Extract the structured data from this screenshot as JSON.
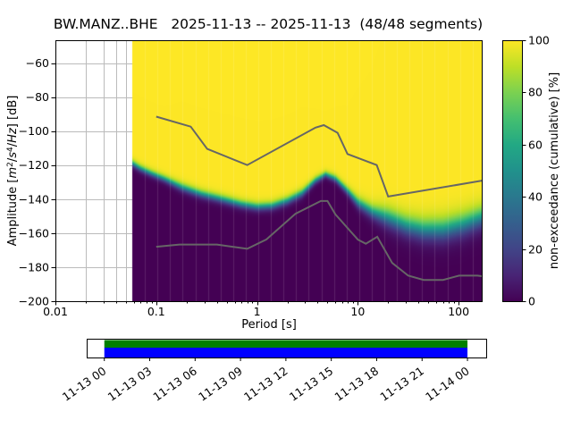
{
  "title": "BW.MANZ..BHE   2025-11-13 -- 2025-11-13  (48/48 segments)",
  "chart_data": {
    "type": "heatmap",
    "plot_kind": "seismic PPSD cumulative spectral histogram",
    "station_id": "BW.MANZ..BHE",
    "date_range": "2025-11-13 -- 2025-11-13",
    "segments": "48/48",
    "xlabel": "Period [s]",
    "ylabel": "Amplitude [m²/s⁴/Hz] [dB]",
    "ylabel_parts": [
      {
        "t": "Amplitude ["
      },
      {
        "t": "m",
        "style": "italic"
      },
      {
        "t": "2",
        "style": "sup"
      },
      {
        "t": "/"
      },
      {
        "t": "s",
        "style": "italic"
      },
      {
        "t": "4",
        "style": "sup"
      },
      {
        "t": "/"
      },
      {
        "t": "Hz",
        "style": "italic"
      },
      {
        "t": "] [dB]"
      }
    ],
    "colorbar_label": "non-exceedance (cumulative) [%]",
    "x_scale": "log",
    "xlim": [
      0.01,
      173
    ],
    "ylim": [
      -200,
      -46.6
    ],
    "x_ticks": [
      {
        "value": 0.01,
        "label": "0.01"
      },
      {
        "value": 0.1,
        "label": "0.1"
      },
      {
        "value": 1,
        "label": "1"
      },
      {
        "value": 10,
        "label": "10"
      },
      {
        "value": 100,
        "label": "100"
      }
    ],
    "y_ticks": [
      {
        "value": -60,
        "label": "−60"
      },
      {
        "value": -80,
        "label": "−80"
      },
      {
        "value": -100,
        "label": "−100"
      },
      {
        "value": -120,
        "label": "−120"
      },
      {
        "value": -140,
        "label": "−140"
      },
      {
        "value": -160,
        "label": "−160"
      },
      {
        "value": -180,
        "label": "−180"
      },
      {
        "value": -200,
        "label": "−200"
      }
    ],
    "colorbar_ticks": [
      {
        "value": 0,
        "label": "0"
      },
      {
        "value": 20,
        "label": "20"
      },
      {
        "value": 40,
        "label": "40"
      },
      {
        "value": 60,
        "label": "60"
      },
      {
        "value": 80,
        "label": "80"
      },
      {
        "value": 100,
        "label": "100"
      }
    ],
    "data_period_start": 0.058,
    "period_bins_per_decade": 8,
    "distribution": {
      "comment": "approximate median dB and spread of the cumulative transition per period",
      "periods": [
        0.058,
        0.07,
        0.09,
        0.12,
        0.18,
        0.28,
        0.45,
        0.7,
        1.0,
        1.4,
        2.0,
        2.8,
        3.8,
        4.8,
        6.0,
        8.0,
        10,
        14,
        20,
        30,
        45,
        70,
        110,
        173
      ],
      "median_db": [
        -119,
        -122,
        -125,
        -128,
        -133,
        -137,
        -140,
        -143,
        -144.5,
        -144,
        -141,
        -136.5,
        -129,
        -125.5,
        -128,
        -135.5,
        -142,
        -147.5,
        -151,
        -155.5,
        -158,
        -158,
        -155,
        -150.5
      ],
      "spread_db": [
        2.5,
        2.5,
        2.5,
        2.5,
        3,
        3,
        3,
        3,
        3,
        3,
        3,
        3,
        2.5,
        2.2,
        2.5,
        3,
        4,
        5,
        7,
        7.5,
        8,
        8.5,
        8.5,
        8
      ]
    },
    "noise_models": {
      "high": {
        "name": "NHNM",
        "periods": [
          0.1,
          0.22,
          0.32,
          0.8,
          3.8,
          4.6,
          6.3,
          7.9,
          15.4,
          20,
          354.8
        ],
        "db": [
          -91.5,
          -97.4,
          -110.5,
          -120,
          -98,
          -96.5,
          -101,
          -113.5,
          -120,
          -138.5,
          -126
        ]
      },
      "low": {
        "name": "NLNM",
        "periods": [
          0.1,
          0.17,
          0.4,
          0.8,
          1.24,
          2.4,
          4.3,
          5,
          6,
          10,
          12,
          15.6,
          21.9,
          31.6,
          45,
          70,
          101,
          154,
          328
        ],
        "db": [
          -168,
          -166.7,
          -166.7,
          -169.2,
          -163.7,
          -148.6,
          -141.1,
          -141.1,
          -149,
          -163.8,
          -166.2,
          -162.1,
          -177.5,
          -185,
          -187.5,
          -187.5,
          -185,
          -185,
          -187.5
        ]
      }
    },
    "viridis_stops": [
      [
        0,
        "#440154"
      ],
      [
        0.1,
        "#482475"
      ],
      [
        0.2,
        "#414487"
      ],
      [
        0.3,
        "#355f8d"
      ],
      [
        0.4,
        "#2a788e"
      ],
      [
        0.5,
        "#21918c"
      ],
      [
        0.6,
        "#22a884"
      ],
      [
        0.7,
        "#44bf70"
      ],
      [
        0.8,
        "#7ad151"
      ],
      [
        0.9,
        "#bddf26"
      ],
      [
        1,
        "#fde725"
      ]
    ],
    "colors": {
      "grid": "#bbbbbb",
      "noise_model": "#666666",
      "frame": "#000000"
    },
    "timeline": {
      "tick_labels": [
        "11-13 00",
        "11-13 03",
        "11-13 06",
        "11-13 09",
        "11-13 12",
        "11-13 15",
        "11-13 18",
        "11-13 21",
        "11-14 00"
      ],
      "coverage_fraction": [
        0.042,
        0.953
      ],
      "colors": {
        "data": "#008000",
        "processed": "#0000ff"
      }
    }
  }
}
